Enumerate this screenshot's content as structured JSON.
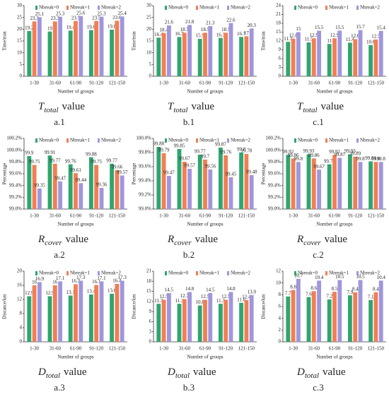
{
  "chart_data": [
    {
      "type": "bar",
      "x_label": "Number of groups",
      "y_label": "Time/min",
      "categories": [
        "1-30",
        "31-60",
        "61-90",
        "91-120",
        "121-150"
      ],
      "series": [
        {
          "name": "Nbreak=0",
          "color": "#2fa56f",
          "values": [
            19.2,
            19.0,
            19.4,
            19.6,
            19.8
          ]
        },
        {
          "name": "Nbreak=1",
          "color": "#f07f55",
          "values": [
            23.3,
            23.3,
            23.5,
            23.5,
            23.6
          ]
        },
        {
          "name": "Nbreak=2",
          "color": "#a096dc",
          "values": [
            25.1,
            25.3,
            25.6,
            25.3,
            25.4
          ]
        }
      ],
      "ylim": [
        0,
        30
      ],
      "yticks": [
        0,
        5,
        10,
        15,
        20,
        25,
        30
      ],
      "caption": {
        "symbol": "T",
        "subscript": "total",
        "suffix": "value",
        "label": "a.1"
      }
    },
    {
      "type": "bar",
      "x_label": "Number of groups",
      "y_label": "Time/min",
      "categories": [
        "1-30",
        "31-60",
        "61-90",
        "91-120",
        "121-150"
      ],
      "series": [
        {
          "name": "Nbreak=0",
          "color": "#2fa56f",
          "values": [
            16.4,
            16.7,
            15.9,
            16.3,
            16.7
          ]
        },
        {
          "name": "Nbreak=1",
          "color": "#f07f55",
          "values": [
            18.4,
            18.5,
            18.5,
            18.5,
            17.0
          ]
        },
        {
          "name": "Nbreak=2",
          "color": "#a096dc",
          "values": [
            21.6,
            21.8,
            21.3,
            22.6,
            20.3
          ]
        }
      ],
      "ylim": [
        0,
        30
      ],
      "yticks": [
        0,
        5,
        10,
        15,
        20,
        25,
        30
      ],
      "caption": {
        "symbol": "T",
        "subscript": "total",
        "suffix": "value",
        "label": "b.1"
      }
    },
    {
      "type": "bar",
      "x_label": "Number of groups",
      "y_label": "Time/min",
      "categories": [
        "1-30",
        "31-60",
        "61-90",
        "91-120",
        "121-150"
      ],
      "series": [
        {
          "name": "Nbreak=0",
          "color": "#2fa56f",
          "values": [
            11.7,
            11.5,
            11.0,
            11.4,
            10.6
          ]
        },
        {
          "name": "Nbreak=1",
          "color": "#f07f55",
          "values": [
            12.8,
            12.9,
            12.9,
            12.6,
            12.5
          ]
        },
        {
          "name": "Nbreak=2",
          "color": "#a096dc",
          "values": [
            15.0,
            15.5,
            15.5,
            15.7,
            15.4
          ]
        }
      ],
      "ylim": [
        0,
        24
      ],
      "yticks": [
        0,
        3,
        6,
        9,
        12,
        15,
        18,
        21,
        24
      ],
      "caption": {
        "symbol": "T",
        "subscript": "total",
        "suffix": "value",
        "label": "c.1"
      }
    },
    {
      "type": "bar",
      "x_label": "Number of groups",
      "y_label": "Percentage",
      "categories": [
        "1-30",
        "31-60",
        "61-90",
        "91-120",
        "121-150"
      ],
      "series": [
        {
          "name": "Nbreak=0",
          "color": "#2fa56f",
          "values": [
            99.9,
            99.91,
            99.76,
            99.88,
            99.77
          ]
        },
        {
          "name": "Nbreak=1",
          "color": "#f07f55",
          "values": [
            99.75,
            99.77,
            99.61,
            99.75,
            99.66
          ]
        },
        {
          "name": "Nbreak=2",
          "color": "#a096dc",
          "values": [
            99.35,
            99.47,
            99.44,
            99.36,
            99.57
          ]
        }
      ],
      "ylim": [
        99.0,
        100.2
      ],
      "yticks": [
        {
          "value": 99.0,
          "label": "99.0%"
        },
        {
          "value": 99.2,
          "label": "99.2%"
        },
        {
          "value": 99.4,
          "label": "99.4%"
        },
        {
          "value": 99.6,
          "label": "99.6%"
        },
        {
          "value": 99.8,
          "label": "99.8%"
        },
        {
          "value": 100.0,
          "label": "100.0%"
        },
        {
          "value": 100.2,
          "label": "100.2%"
        }
      ],
      "caption": {
        "symbol": "R",
        "subscript": "cover",
        "suffix": "value",
        "label": "a.2"
      }
    },
    {
      "type": "bar",
      "x_label": "Number of groups",
      "y_label": "Percentage",
      "categories": [
        "1-30",
        "31-60",
        "61-90",
        "91-120",
        "121-150"
      ],
      "series": [
        {
          "name": "Nbreak=0",
          "color": "#2fa56f",
          "values": [
            99.88,
            99.85,
            99.77,
            99.87,
            99.8
          ]
        },
        {
          "name": "Nbreak=1",
          "color": "#f07f55",
          "values": [
            99.79,
            99.67,
            99.7,
            99.76,
            99.78
          ]
        },
        {
          "name": "Nbreak=2",
          "color": "#a096dc",
          "values": [
            99.47,
            99.57,
            99.56,
            99.45,
            99.48
          ]
        }
      ],
      "ylim": [
        99.0,
        100.0
      ],
      "yticks": [
        {
          "value": 99.0,
          "label": "99.0%"
        },
        {
          "value": 99.2,
          "label": "99.2%"
        },
        {
          "value": 99.4,
          "label": "99.4%"
        },
        {
          "value": 99.6,
          "label": "99.6%"
        },
        {
          "value": 99.8,
          "label": "99.8%"
        },
        {
          "value": 100.0,
          "label": "100.0%"
        }
      ],
      "caption": {
        "symbol": "R",
        "subscript": "cover",
        "suffix": "value",
        "label": "b.2"
      }
    },
    {
      "type": "bar",
      "x_label": "Number of groups",
      "y_label": "Percentage",
      "categories": [
        "1-30",
        "31-60",
        "61-90",
        "91-120",
        "121-150"
      ],
      "series": [
        {
          "name": "Nbreak=0",
          "color": "#2fa56f",
          "values": [
            99.92,
            99.93,
            99.76,
            99.93,
            99.81
          ]
        },
        {
          "name": "Nbreak=1",
          "color": "#f07f55",
          "values": [
            99.86,
            99.86,
            99.92,
            99.89,
            99.8
          ]
        },
        {
          "name": "Nbreak=2",
          "color": "#a096dc",
          "values": [
            99.8,
            99.67,
            99.87,
            99.8,
            99.8
          ]
        }
      ],
      "ylim": [
        99.0,
        100.2
      ],
      "yticks": [
        {
          "value": 99.0,
          "label": "99.0%"
        },
        {
          "value": 99.2,
          "label": "99.2%"
        },
        {
          "value": 99.4,
          "label": "99.4%"
        },
        {
          "value": 99.6,
          "label": "99.6%"
        },
        {
          "value": 99.8,
          "label": "99.8%"
        },
        {
          "value": 100.0,
          "label": "100.0%"
        },
        {
          "value": 100.2,
          "label": "100.2%"
        }
      ],
      "caption": {
        "symbol": "R",
        "subscript": "cover",
        "suffix": "value",
        "label": "c.2"
      }
    },
    {
      "type": "bar",
      "x_label": "Number of groups",
      "y_label": "Distance/km",
      "categories": [
        "1-30",
        "31-60",
        "61-90",
        "91-120",
        "121-150"
      ],
      "series": [
        {
          "name": "Nbreak=0",
          "color": "#2fa56f",
          "values": [
            12.9,
            12.9,
            13.1,
            13.4,
            13.6
          ]
        },
        {
          "name": "Nbreak=1",
          "color": "#f07f55",
          "values": [
            16.0,
            16.0,
            16.3,
            16.1,
            16.4
          ]
        },
        {
          "name": "Nbreak=2",
          "color": "#a096dc",
          "values": [
            16.9,
            17.1,
            17.3,
            17.1,
            17.3
          ]
        }
      ],
      "ylim": [
        0,
        20
      ],
      "yticks": [
        0,
        4,
        8,
        12,
        16,
        20
      ],
      "caption": {
        "symbol": "D",
        "subscript": "total",
        "suffix": "value",
        "label": "a.3"
      }
    },
    {
      "type": "bar",
      "x_label": "Number of groups",
      "y_label": "Distance/km",
      "categories": [
        "1-30",
        "31-60",
        "61-90",
        "91-120",
        "121-150"
      ],
      "series": [
        {
          "name": "Nbreak=0",
          "color": "#2fa56f",
          "values": [
            11.3,
            11.3,
            10.8,
            11.3,
            11.6
          ]
        },
        {
          "name": "Nbreak=1",
          "color": "#f07f55",
          "values": [
            12.5,
            12.7,
            12.5,
            12.5,
            12.4
          ]
        },
        {
          "name": "Nbreak=2",
          "color": "#a096dc",
          "values": [
            14.5,
            14.8,
            14.5,
            14.8,
            13.9
          ]
        }
      ],
      "ylim": [
        0,
        21
      ],
      "yticks": [
        0,
        3,
        6,
        9,
        12,
        15,
        18,
        21
      ],
      "caption": {
        "symbol": "D",
        "subscript": "total",
        "suffix": "value",
        "label": "b.3"
      }
    },
    {
      "type": "bar",
      "x_label": "Number of groups",
      "y_label": "Distance/km",
      "categories": [
        "1-30",
        "31-60",
        "61-90",
        "91-120",
        "121-150"
      ],
      "series": [
        {
          "name": "Nbreak=0",
          "color": "#2fa56f",
          "values": [
            7.7,
            7.6,
            7.2,
            7.9,
            7.1
          ]
        },
        {
          "name": "Nbreak=1",
          "color": "#f07f55",
          "values": [
            8.8,
            8.6,
            8.5,
            8.4,
            8.4
          ]
        },
        {
          "name": "Nbreak=2",
          "color": "#a096dc",
          "values": [
            10.7,
            10.4,
            10.5,
            10.5,
            10.4
          ]
        }
      ],
      "ylim": [
        0,
        12
      ],
      "yticks": [
        0,
        2,
        4,
        6,
        8,
        10,
        12
      ],
      "caption": {
        "symbol": "D",
        "subscript": "total",
        "suffix": "value",
        "label": "c.3"
      }
    }
  ]
}
